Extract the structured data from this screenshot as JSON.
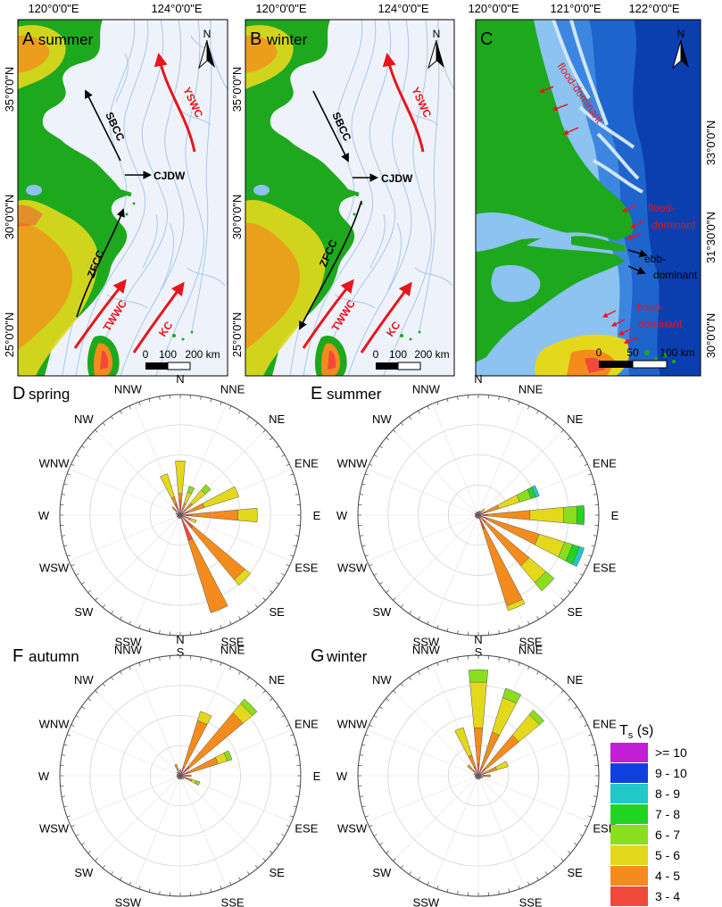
{
  "colors": {
    "land_green": "#1ea81e",
    "sea_pale": "#e8f0fb",
    "isobath": "#a9c6ee",
    "current_red": "#e8161b",
    "current_black": "#000000",
    "deep_blue": "#0b3fb0",
    "mid_blue": "#3d86df",
    "light_blue": "#8cc3f0"
  },
  "maps": {
    "coords_top": [
      "120°0'0\"E",
      "124°0'0\"E",
      "120°0'0\"E",
      "124°0'0\"E",
      "120°0'0\"E",
      "121°0'0\"E",
      "122°0'0\"E"
    ],
    "lat_left_ab": [
      "35°0'0\"N",
      "30°0'0\"N",
      "25°0'0\"N"
    ],
    "lat_right_c": [
      "33°0'0\"N",
      "31°30'0\"N",
      "30°0'0\"N"
    ],
    "panel_a": {
      "letter": "A",
      "season": "summer",
      "north": "N",
      "currents": {
        "yswc": "YSWC",
        "sbcc": "SBCC",
        "cjdw": "CJDW",
        "zfcc": "ZFCC",
        "twwc": "TWWC",
        "kc": "KC"
      },
      "scale": {
        "zero": "0",
        "mid": "100",
        "end": "200 km"
      }
    },
    "panel_b": {
      "letter": "B",
      "season": "winter",
      "north": "N",
      "currents": {
        "yswc": "YSWC",
        "sbcc": "SBCC",
        "cjdw": "CJDW",
        "zfcc": "ZFCC",
        "twwc": "TWWC",
        "kc": "KC"
      },
      "scale": {
        "zero": "0",
        "mid": "100",
        "end": "200 km"
      }
    },
    "panel_c": {
      "letter": "C",
      "north": "N",
      "flood1": "flood-dominant",
      "flood2a": "flood-",
      "flood2b": "dominant",
      "ebb_a": "ebb-",
      "ebb_b": "dominant",
      "flood3a": "flood-",
      "flood3b": "dominant",
      "scale": {
        "zero": "0",
        "mid": "50",
        "end": "100 km"
      }
    }
  },
  "directions": [
    "N",
    "NNE",
    "NE",
    "ENE",
    "E",
    "ESE",
    "SE",
    "SSE",
    "S",
    "SSW",
    "SW",
    "WSW",
    "W",
    "WNW",
    "NW",
    "NNW"
  ],
  "chart_data": [
    {
      "type": "rose",
      "letter": "D",
      "season": "spring",
      "bins": [
        "3 - 4",
        "4 - 5",
        "5 - 6",
        "6 - 7",
        "7 - 8"
      ],
      "rays": [
        {
          "dir": 0,
          "segments": [
            0.12,
            0.06,
            0.27
          ]
        },
        {
          "dir": 22.5,
          "segments": [
            0.06,
            0.04,
            0.1,
            0.05
          ]
        },
        {
          "dir": 45,
          "segments": [
            0.06,
            0.07,
            0.14,
            0.06
          ]
        },
        {
          "dir": 67.5,
          "segments": [
            0.07,
            0.14,
            0.3
          ]
        },
        {
          "dir": 90,
          "segments": [
            0.1,
            0.38,
            0.16
          ]
        },
        {
          "dir": 112.5,
          "segments": [
            0.04,
            0.05,
            0.05
          ]
        },
        {
          "dir": 135,
          "segments": [
            0.14,
            0.56,
            0.06
          ]
        },
        {
          "dir": 157.5,
          "segments": [
            0.22,
            0.63
          ]
        },
        {
          "dir": 180,
          "segments": [
            0.03
          ]
        },
        {
          "dir": 202.5,
          "segments": [
            0.03
          ]
        },
        {
          "dir": 225,
          "segments": [
            0.03
          ]
        },
        {
          "dir": 247.5,
          "segments": [
            0.03
          ]
        },
        {
          "dir": 270,
          "segments": [
            0.03
          ]
        },
        {
          "dir": 292.5,
          "segments": [
            0.04
          ]
        },
        {
          "dir": 315,
          "segments": [
            0.06,
            0.03
          ]
        },
        {
          "dir": 337.5,
          "segments": [
            0.1,
            0.06,
            0.2
          ]
        }
      ]
    },
    {
      "type": "rose",
      "letter": "E",
      "season": "summer",
      "bins": [
        "3 - 4",
        "4 - 5",
        "5 - 6",
        "6 - 7",
        "7 - 8",
        "8 - 9",
        "9 - 10"
      ],
      "rays": [
        {
          "dir": 0,
          "segments": [
            0.03
          ]
        },
        {
          "dir": 22.5,
          "segments": [
            0.04
          ]
        },
        {
          "dir": 45,
          "segments": [
            0.03,
            0.02,
            0.02
          ]
        },
        {
          "dir": 67.5,
          "segments": [
            0.06,
            0.12,
            0.18,
            0.1,
            0.04,
            0.03
          ]
        },
        {
          "dir": 90,
          "segments": [
            0.08,
            0.35,
            0.28,
            0.11,
            0.06
          ]
        },
        {
          "dir": 112.5,
          "segments": [
            0.08,
            0.45,
            0.22,
            0.07,
            0.06,
            0.04
          ]
        },
        {
          "dir": 135,
          "segments": [
            0.08,
            0.47,
            0.18,
            0.09
          ]
        },
        {
          "dir": 157.5,
          "segments": [
            0.12,
            0.67,
            0.04
          ]
        },
        {
          "dir": 180,
          "segments": [
            0.03
          ]
        },
        {
          "dir": 202.5,
          "segments": [
            0.03
          ]
        },
        {
          "dir": 225,
          "segments": [
            0.03
          ]
        },
        {
          "dir": 247.5,
          "segments": [
            0.03
          ]
        },
        {
          "dir": 270,
          "segments": [
            0.03
          ]
        },
        {
          "dir": 292.5,
          "segments": [
            0.03
          ]
        },
        {
          "dir": 315,
          "segments": [
            0.03
          ]
        },
        {
          "dir": 337.5,
          "segments": [
            0.03
          ]
        }
      ]
    },
    {
      "type": "rose",
      "letter": "F",
      "season": "autumn",
      "bins": [
        "3 - 4",
        "4 - 5",
        "5 - 6",
        "6 - 7",
        "7 - 8"
      ],
      "rays": [
        {
          "dir": 0,
          "segments": [
            0.05
          ]
        },
        {
          "dir": 22.5,
          "segments": [
            0.08,
            0.4,
            0.08
          ]
        },
        {
          "dir": 45,
          "segments": [
            0.1,
            0.58,
            0.1,
            0.05
          ]
        },
        {
          "dir": 67.5,
          "segments": [
            0.07,
            0.26,
            0.08,
            0.04
          ]
        },
        {
          "dir": 90,
          "segments": [
            0.05,
            0.04
          ]
        },
        {
          "dir": 112.5,
          "segments": [
            0.06,
            0.04,
            0.04,
            0.03
          ]
        },
        {
          "dir": 135,
          "segments": [
            0.04
          ]
        },
        {
          "dir": 157.5,
          "segments": [
            0.03
          ]
        },
        {
          "dir": 180,
          "segments": [
            0.03
          ]
        },
        {
          "dir": 202.5,
          "segments": [
            0.03
          ]
        },
        {
          "dir": 225,
          "segments": [
            0.03
          ]
        },
        {
          "dir": 247.5,
          "segments": [
            0.03
          ]
        },
        {
          "dir": 270,
          "segments": [
            0.03
          ]
        },
        {
          "dir": 292.5,
          "segments": [
            0.03
          ]
        },
        {
          "dir": 315,
          "segments": [
            0.04
          ]
        },
        {
          "dir": 337.5,
          "segments": [
            0.06,
            0.04
          ]
        }
      ]
    },
    {
      "type": "rose",
      "letter": "G",
      "season": "winter",
      "bins": [
        "3 - 4",
        "4 - 5",
        "5 - 6",
        "6 - 7"
      ],
      "rays": [
        {
          "dir": 0,
          "segments": [
            0.1,
            0.3,
            0.38,
            0.1
          ]
        },
        {
          "dir": 22.5,
          "segments": [
            0.08,
            0.3,
            0.3,
            0.08
          ]
        },
        {
          "dir": 45,
          "segments": [
            0.08,
            0.36,
            0.22,
            0.05
          ]
        },
        {
          "dir": 67.5,
          "segments": [
            0.06,
            0.1,
            0.1
          ]
        },
        {
          "dir": 90,
          "segments": [
            0.05,
            0.05
          ]
        },
        {
          "dir": 112.5,
          "segments": [
            0.04
          ]
        },
        {
          "dir": 135,
          "segments": [
            0.03
          ]
        },
        {
          "dir": 157.5,
          "segments": [
            0.03
          ]
        },
        {
          "dir": 180,
          "segments": [
            0.03
          ]
        },
        {
          "dir": 202.5,
          "segments": [
            0.03
          ]
        },
        {
          "dir": 225,
          "segments": [
            0.03
          ]
        },
        {
          "dir": 247.5,
          "segments": [
            0.03
          ]
        },
        {
          "dir": 270,
          "segments": [
            0.03
          ]
        },
        {
          "dir": 292.5,
          "segments": [
            0.04
          ]
        },
        {
          "dir": 315,
          "segments": [
            0.06,
            0.06
          ]
        },
        {
          "dir": 337.5,
          "segments": [
            0.08,
            0.1,
            0.24
          ]
        }
      ]
    }
  ],
  "legend": {
    "title_main": "T",
    "title_sub": "s",
    "title_unit": " (s)",
    "items": [
      {
        "label": ">= 10",
        "color": "#c21fd6"
      },
      {
        "label": "9 - 10",
        "color": "#1040e0"
      },
      {
        "label": "8 - 9",
        "color": "#22c8c8"
      },
      {
        "label": "7 - 8",
        "color": "#22d422"
      },
      {
        "label": "6 - 7",
        "color": "#8ade1e"
      },
      {
        "label": "5 - 6",
        "color": "#e4d81c"
      },
      {
        "label": "4 - 5",
        "color": "#f38c1c"
      },
      {
        "label": "3 - 4",
        "color": "#f24a3a"
      }
    ]
  }
}
